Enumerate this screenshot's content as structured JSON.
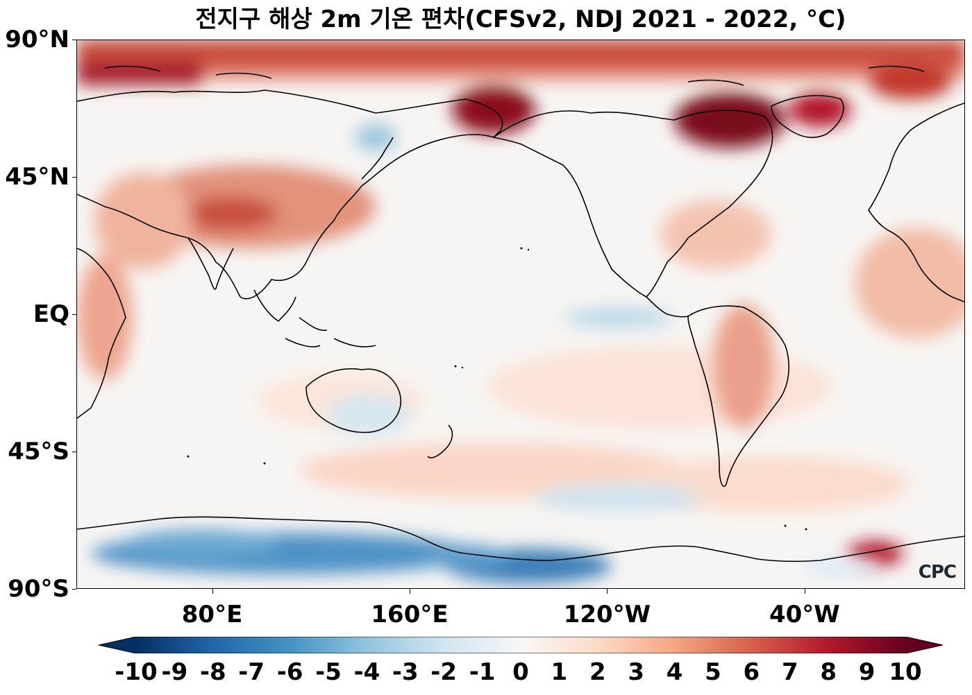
{
  "title": "전지구 해상 2m 기온 편차(CFSv2, NDJ 2021 - 2022, °C)",
  "axes": {
    "lat_ticks": [
      {
        "value": 90,
        "label": "90°N"
      },
      {
        "value": 45,
        "label": "45°N"
      },
      {
        "value": 0,
        "label": "EQ"
      },
      {
        "value": -45,
        "label": "45°S"
      },
      {
        "value": -90,
        "label": "90°S"
      }
    ],
    "lon_ticks": [
      {
        "value": 80,
        "label": "80°E"
      },
      {
        "value": 160,
        "label": "160°E"
      },
      {
        "value": 240,
        "label": "120°W"
      },
      {
        "value": 320,
        "label": "40°W"
      }
    ],
    "lon_range": [
      25,
      385
    ],
    "lat_range": [
      -90,
      90
    ]
  },
  "colorbar": {
    "ticks": [
      "-10",
      "-9",
      "-8",
      "-7",
      "-6",
      "-5",
      "-4",
      "-3",
      "-2",
      "-1",
      "0",
      "1",
      "2",
      "3",
      "4",
      "5",
      "6",
      "7",
      "8",
      "9",
      "10"
    ],
    "min": -10,
    "max": 10,
    "extend": "both",
    "colormap": [
      "#053061",
      "#2166ac",
      "#4393c3",
      "#92c5de",
      "#d1e5f0",
      "#f7f7f7",
      "#fddbc7",
      "#f4a582",
      "#d6604d",
      "#b2182b",
      "#67001f"
    ]
  },
  "logo": "CPC",
  "map": {
    "projection": "PlateCarree, centered 205°E",
    "features": [
      "coastlines"
    ],
    "notable_anomalies": []
  }
}
